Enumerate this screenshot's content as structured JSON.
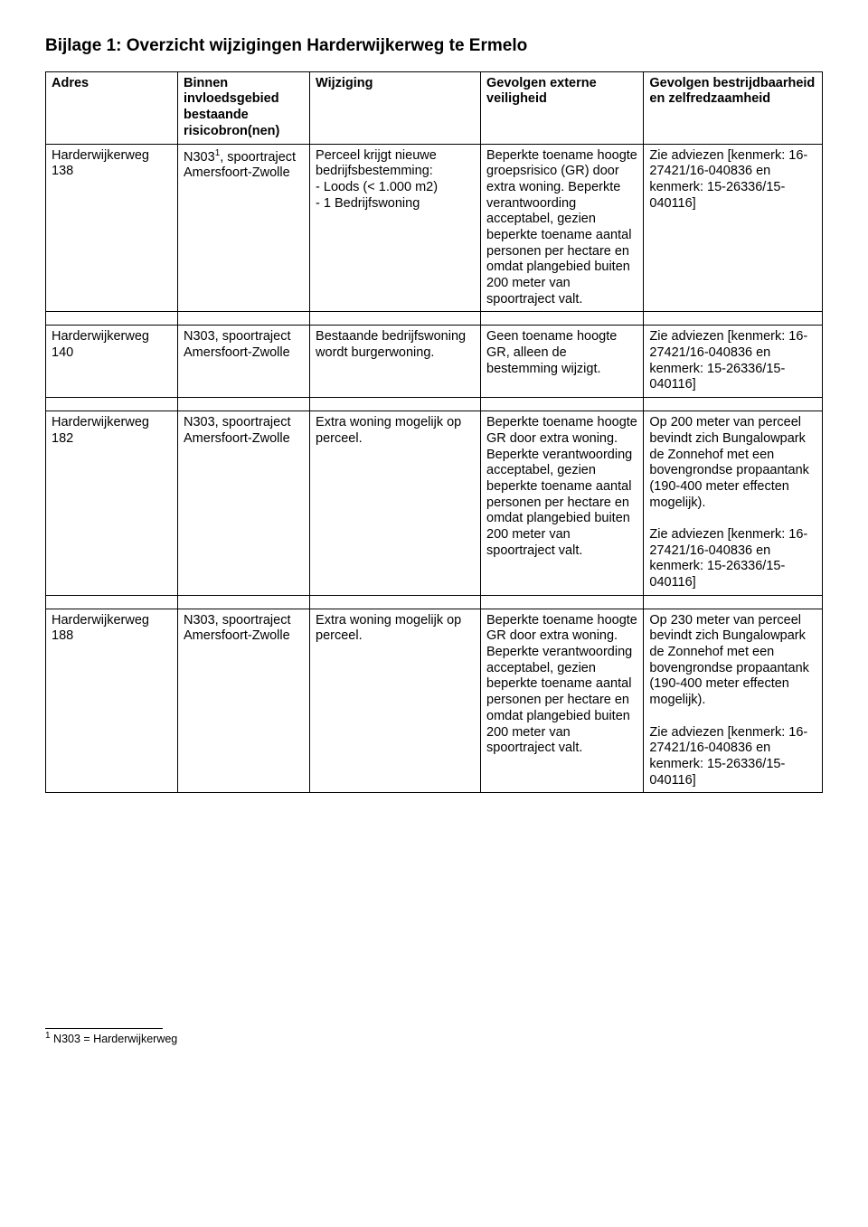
{
  "title": "Bijlage 1: Overzicht wijzigingen Harderwijkerweg te Ermelo",
  "headers": {
    "c1": "Adres",
    "c2": "Binnen invloedsgebied bestaande risicobron(nen)",
    "c3": "Wijziging",
    "c4": "Gevolgen externe veiligheid",
    "c5": "Gevolgen bestrijdbaarheid en zelfredzaamheid"
  },
  "rows": [
    {
      "adres": "Harderwijkerweg 138",
      "bron_pre": "N303",
      "bron_sup": "1",
      "bron_post": ", spoortraject Amersfoort-Zwolle",
      "wijz": "Perceel krijgt nieuwe bedrijfsbestemming:\n- Loods (< 1.000 m2)\n- 1 Bedrijfswoning",
      "gev_ext": "Beperkte toename hoogte groepsrisico (GR) door extra woning. Beperkte verantwoording acceptabel, gezien beperkte toename aantal personen per hectare en omdat plangebied buiten 200 meter van spoortraject valt.",
      "gev_bes": "Zie adviezen [kenmerk: 16-27421/16-040836 en kenmerk: 15-26336/15-040116]"
    },
    {
      "adres": "Harderwijkerweg 140",
      "bron": "N303, spoortraject Amersfoort-Zwolle",
      "wijz": "Bestaande bedrijfswoning wordt burgerwoning.",
      "gev_ext": "Geen toename hoogte GR, alleen de bestemming wijzigt.",
      "gev_bes": "Zie adviezen [kenmerk: 16-27421/16-040836 en kenmerk: 15-26336/15-040116]"
    },
    {
      "adres": "Harderwijkerweg 182",
      "bron": "N303, spoortraject Amersfoort-Zwolle",
      "wijz": "Extra woning mogelijk op perceel.",
      "gev_ext": "Beperkte toename hoogte GR door extra woning. Beperkte verantwoording acceptabel, gezien beperkte toename aantal personen per hectare en omdat plangebied buiten 200 meter van spoortraject valt.",
      "gev_bes": "Op 200 meter van perceel bevindt zich Bungalowpark de Zonnehof met een bovengrondse propaantank (190-400 meter effecten mogelijk).\n\nZie adviezen [kenmerk: 16-27421/16-040836 en kenmerk: 15-26336/15-040116]"
    },
    {
      "adres": "Harderwijkerweg 188",
      "bron": "N303, spoortraject Amersfoort-Zwolle",
      "wijz": "Extra woning mogelijk op perceel.",
      "gev_ext": "Beperkte toename hoogte GR door extra woning. Beperkte verantwoording acceptabel, gezien beperkte toename aantal personen per hectare en omdat plangebied buiten 200 meter van spoortraject valt.",
      "gev_bes": "Op 230 meter van perceel bevindt zich Bungalowpark de Zonnehof met een bovengrondse propaantank (190-400 meter effecten mogelijk).\n\nZie adviezen [kenmerk: 16-27421/16-040836 en kenmerk: 15-26336/15-040116]"
    }
  ],
  "footnote": {
    "num": "1",
    "text": " N303 = Harderwijkerweg"
  }
}
